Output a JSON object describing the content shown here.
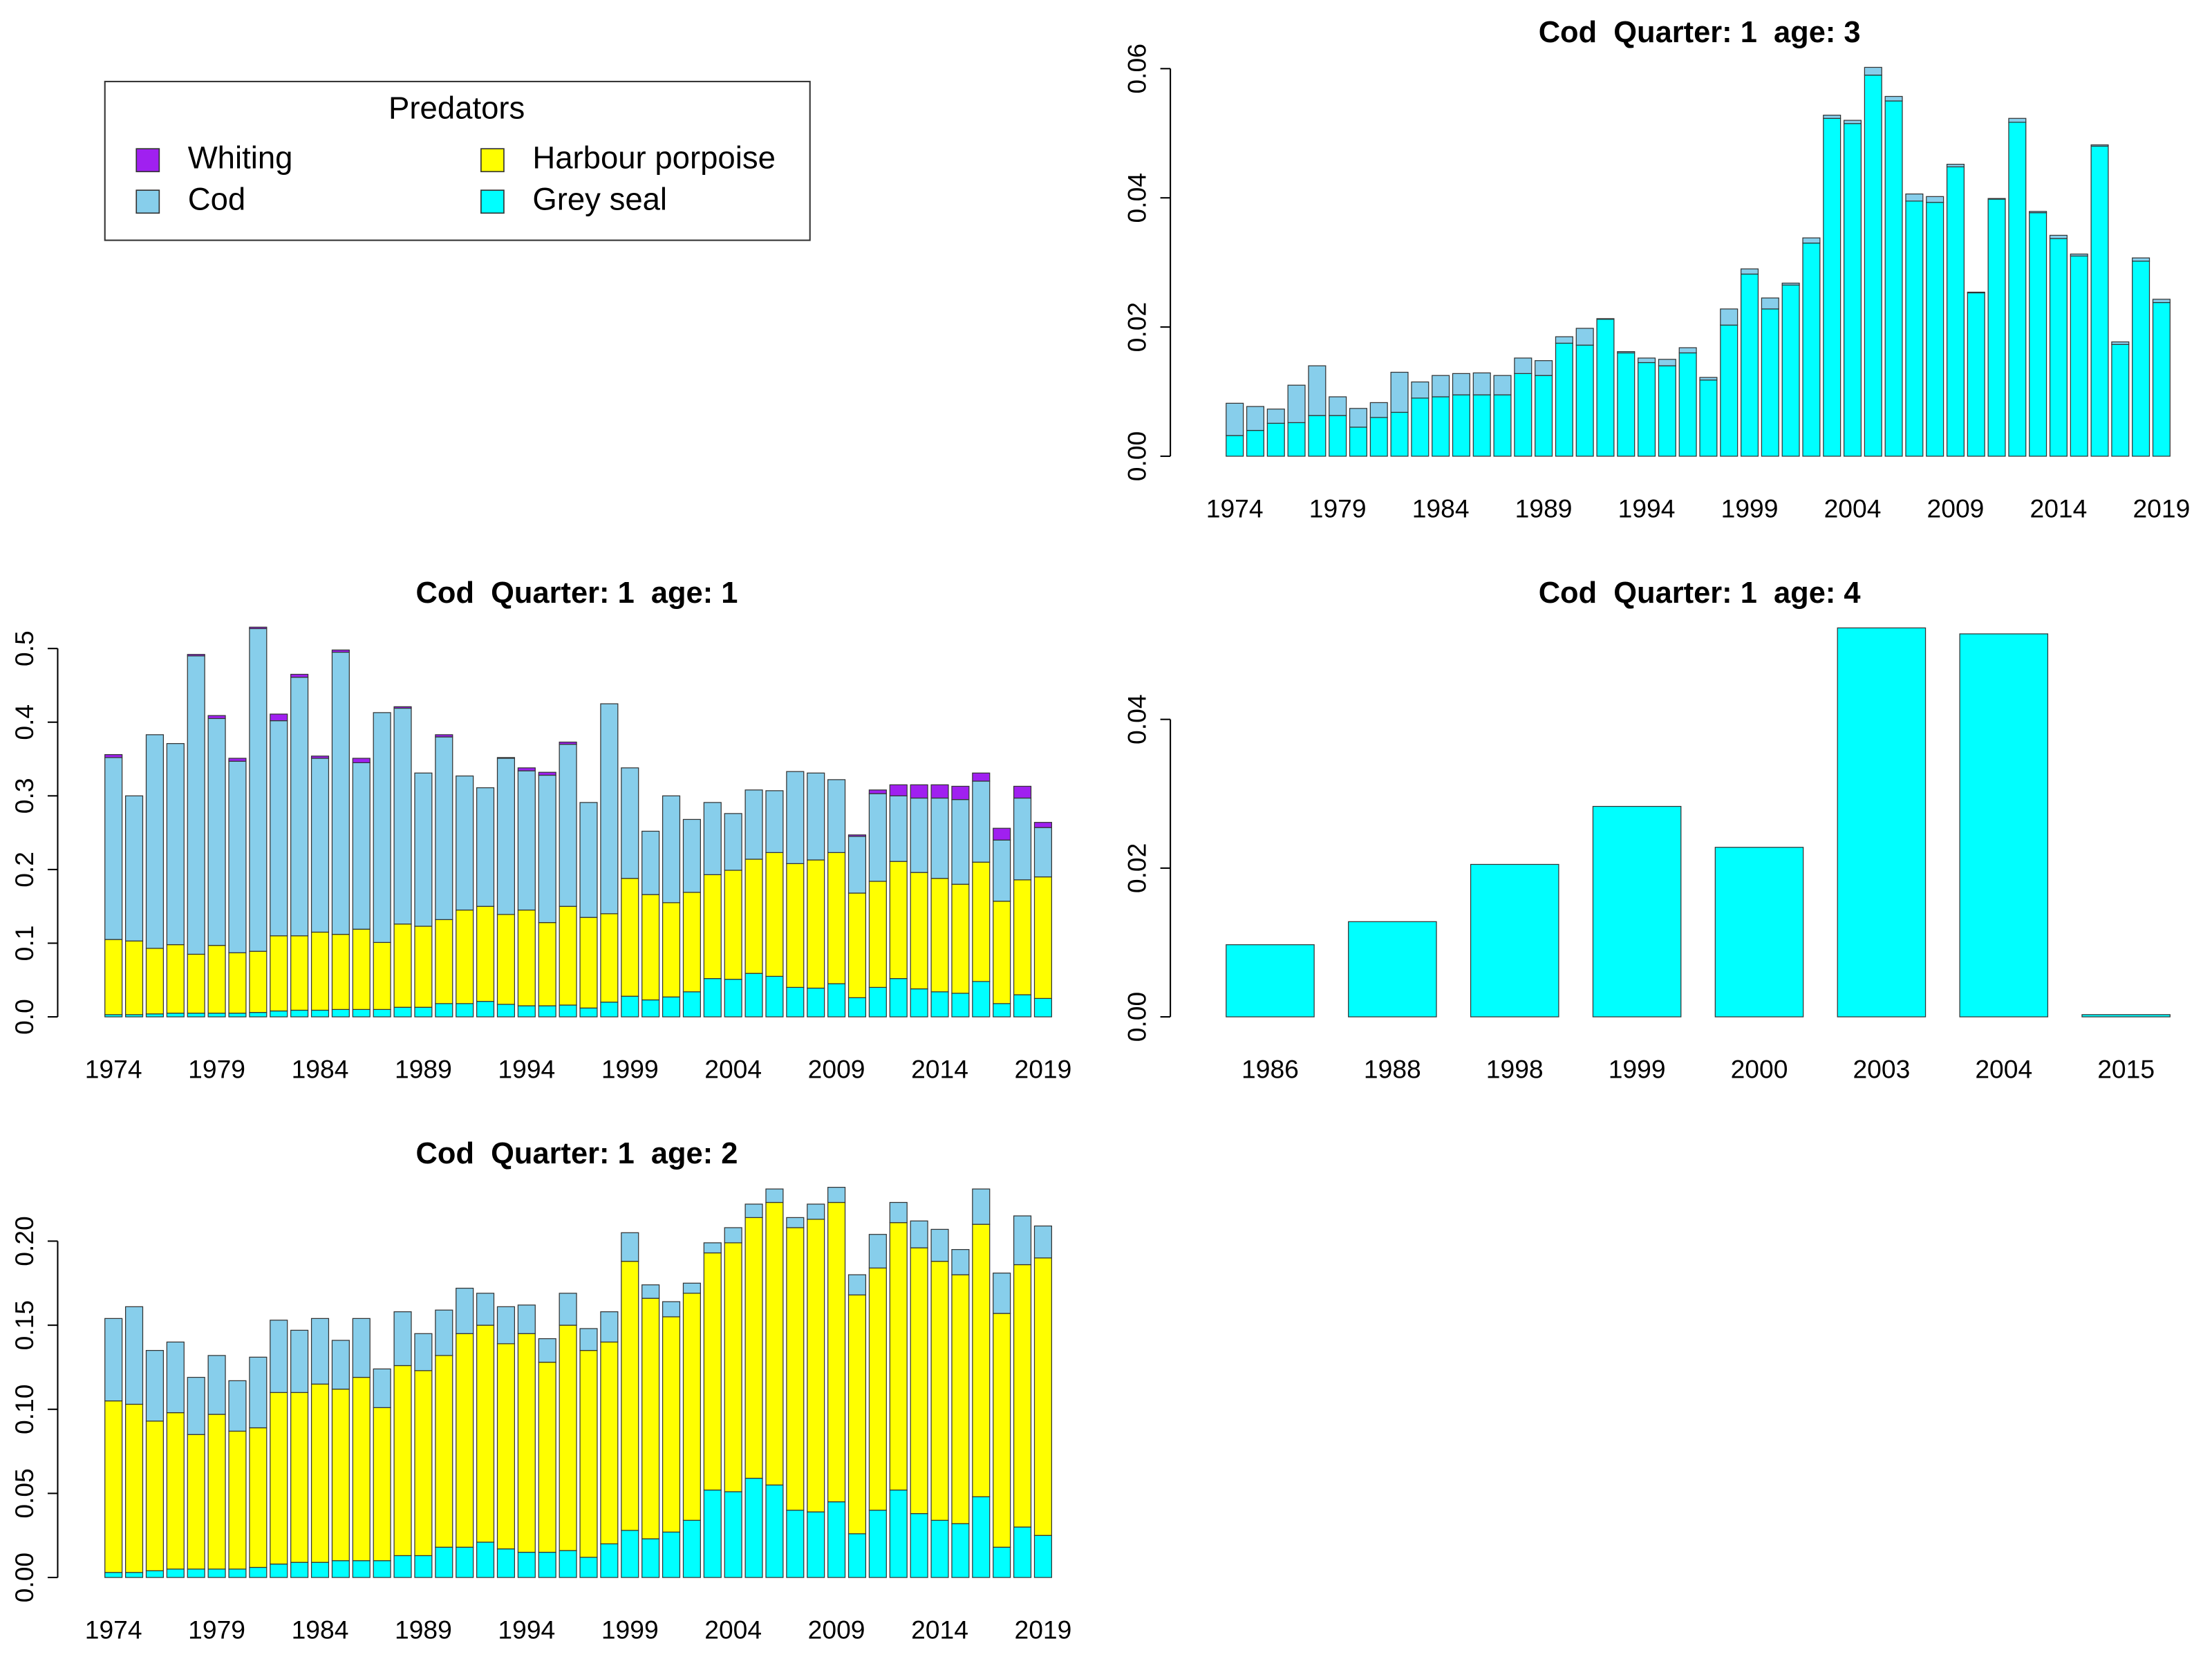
{
  "chart_data": [
    {
      "type": "bar",
      "stacked": true,
      "title": "Cod  Quarter: 1  age: 3",
      "categories": [
        1974,
        null,
        null,
        null,
        null,
        1979,
        null,
        null,
        null,
        null,
        1984,
        null,
        null,
        null,
        null,
        1989,
        null,
        null,
        null,
        null,
        1994,
        null,
        null,
        null,
        null,
        1999,
        null,
        null,
        null,
        null,
        2004,
        null,
        null,
        null,
        null,
        2009,
        null,
        null,
        null,
        null,
        2014,
        null,
        null,
        null,
        null,
        2019
      ],
      "series": [
        {
          "color": "#00ffff",
          "values": [
            0.0032,
            0.004,
            0.0051,
            0.0052,
            0.0063,
            0.0063,
            0.0045,
            0.006,
            0.0068,
            0.009,
            0.0092,
            0.0095,
            0.0095,
            0.0095,
            0.0128,
            0.0125,
            0.0175,
            0.0172,
            0.0212,
            0.016,
            0.0145,
            0.014,
            0.016,
            0.0118,
            0.0203,
            0.0282,
            0.0228,
            0.0265,
            0.033,
            0.0523,
            0.0515,
            0.059,
            0.055,
            0.0395,
            0.0393,
            0.0448,
            0.0253,
            0.0398,
            0.0517,
            0.0377,
            0.0337,
            0.031,
            0.048,
            0.0173,
            0.0302,
            0.0238
          ]
        },
        {
          "color": "#87ceeb",
          "values": [
            0.005,
            0.0037,
            0.0022,
            0.0058,
            0.0077,
            0.0029,
            0.0029,
            0.0023,
            0.0062,
            0.0025,
            0.0033,
            0.0033,
            0.0034,
            0.003,
            0.0024,
            0.0023,
            0.001,
            0.0026,
            0.0001,
            0.0002,
            0.0007,
            0.001,
            0.0008,
            0.0004,
            0.0025,
            0.0008,
            0.0017,
            0.0003,
            0.0008,
            0.0005,
            0.0005,
            0.0012,
            0.0007,
            0.0011,
            0.0009,
            0.0004,
            0.0001,
            0.0001,
            0.0006,
            0.0002,
            0.0005,
            0.0003,
            0.0002,
            0.0004,
            0.0005,
            0.0005
          ]
        }
      ],
      "ylim": [
        0,
        0.06
      ],
      "yticks": [
        {
          "value": 0,
          "label": "0.00"
        },
        0.02,
        0.04,
        0.06
      ]
    },
    {
      "type": "bar",
      "stacked": true,
      "title": "Cod  Quarter: 1  age: 1",
      "legend_title": "Predators",
      "categories": [
        1974,
        null,
        null,
        null,
        null,
        1979,
        null,
        null,
        null,
        null,
        1984,
        null,
        null,
        null,
        null,
        1989,
        null,
        null,
        null,
        null,
        1994,
        null,
        null,
        null,
        null,
        1999,
        null,
        null,
        null,
        null,
        2004,
        null,
        null,
        null,
        null,
        2009,
        null,
        null,
        null,
        null,
        2014,
        null,
        null,
        null,
        null,
        2019
      ],
      "series": [
        {
          "name": "Grey seal",
          "color": "#00ffff",
          "values": [
            0.003,
            0.003,
            0.004,
            0.005,
            0.005,
            0.005,
            0.005,
            0.006,
            0.008,
            0.009,
            0.009,
            0.01,
            0.01,
            0.01,
            0.013,
            0.013,
            0.018,
            0.018,
            0.021,
            0.017,
            0.015,
            0.015,
            0.016,
            0.012,
            0.02,
            0.028,
            0.023,
            0.027,
            0.034,
            0.052,
            0.051,
            0.059,
            0.055,
            0.04,
            0.039,
            0.045,
            0.026,
            0.04,
            0.052,
            0.038,
            0.034,
            0.032,
            0.048,
            0.018,
            0.03,
            0.025
          ]
        },
        {
          "name": "Harbour porpoise",
          "color": "#ffff00",
          "values": [
            0.102,
            0.1,
            0.089,
            0.093,
            0.08,
            0.092,
            0.082,
            0.083,
            0.102,
            0.101,
            0.106,
            0.102,
            0.109,
            0.091,
            0.113,
            0.11,
            0.114,
            0.127,
            0.129,
            0.122,
            0.13,
            0.113,
            0.134,
            0.123,
            0.12,
            0.16,
            0.143,
            0.128,
            0.135,
            0.141,
            0.148,
            0.155,
            0.168,
            0.168,
            0.174,
            0.178,
            0.142,
            0.144,
            0.159,
            0.158,
            0.154,
            0.148,
            0.162,
            0.139,
            0.156,
            0.165
          ]
        },
        {
          "name": "Cod",
          "color": "#87ceeb",
          "values": [
            0.247,
            0.197,
            0.29,
            0.273,
            0.405,
            0.308,
            0.26,
            0.438,
            0.292,
            0.351,
            0.236,
            0.383,
            0.226,
            0.312,
            0.293,
            0.208,
            0.248,
            0.182,
            0.161,
            0.212,
            0.189,
            0.2,
            0.22,
            0.156,
            0.285,
            0.15,
            0.086,
            0.145,
            0.099,
            0.098,
            0.077,
            0.094,
            0.084,
            0.125,
            0.118,
            0.099,
            0.077,
            0.119,
            0.089,
            0.101,
            0.109,
            0.115,
            0.11,
            0.083,
            0.111,
            0.067
          ]
        },
        {
          "name": "Whiting",
          "color": "#a020f0",
          "values": [
            0.004,
            0,
            0,
            0,
            0.002,
            0.004,
            0.004,
            0.002,
            0.009,
            0.004,
            0.003,
            0.003,
            0.006,
            0,
            0.002,
            0,
            0.003,
            0,
            0,
            0.001,
            0.004,
            0.004,
            0.003,
            0,
            0,
            0,
            0,
            0,
            0,
            0,
            0,
            0,
            0,
            0,
            0,
            0,
            0.002,
            0.005,
            0.015,
            0.018,
            0.018,
            0.018,
            0.011,
            0.016,
            0.016,
            0.007
          ]
        }
      ],
      "ylim": [
        0,
        0.53
      ],
      "yticks": [
        {
          "value": 0,
          "label": "0.0"
        },
        0.1,
        0.2,
        0.3,
        0.4,
        0.5
      ]
    },
    {
      "type": "bar",
      "stacked": true,
      "title": "Cod  Quarter: 1  age: 4",
      "categories": [
        1986,
        1988,
        1998,
        1999,
        2000,
        2003,
        2004,
        2015
      ],
      "series": [
        {
          "color": "#00ffff",
          "values": [
            0.0097,
            0.0128,
            0.0205,
            0.0283,
            0.0228,
            0.0523,
            0.0515,
            0.0003
          ]
        }
      ],
      "ylim": [
        0,
        0.0525
      ],
      "yticks": [
        {
          "value": 0,
          "label": "0.00"
        },
        0.02,
        0.04
      ]
    },
    {
      "type": "bar",
      "stacked": true,
      "title": "Cod  Quarter: 1  age: 2",
      "categories": [
        1974,
        null,
        null,
        null,
        null,
        1979,
        null,
        null,
        null,
        null,
        1984,
        null,
        null,
        null,
        null,
        1989,
        null,
        null,
        null,
        null,
        1994,
        null,
        null,
        null,
        null,
        1999,
        null,
        null,
        null,
        null,
        2004,
        null,
        null,
        null,
        null,
        2009,
        null,
        null,
        null,
        null,
        2014,
        null,
        null,
        null,
        null,
        2019
      ],
      "series": [
        {
          "color": "#00ffff",
          "values": [
            0.003,
            0.003,
            0.004,
            0.005,
            0.005,
            0.005,
            0.005,
            0.006,
            0.008,
            0.009,
            0.009,
            0.01,
            0.01,
            0.01,
            0.013,
            0.013,
            0.018,
            0.018,
            0.021,
            0.017,
            0.015,
            0.015,
            0.016,
            0.012,
            0.02,
            0.028,
            0.023,
            0.027,
            0.034,
            0.052,
            0.051,
            0.059,
            0.055,
            0.04,
            0.039,
            0.045,
            0.026,
            0.04,
            0.052,
            0.038,
            0.034,
            0.032,
            0.048,
            0.018,
            0.03,
            0.025
          ]
        },
        {
          "color": "#ffff00",
          "values": [
            0.102,
            0.1,
            0.089,
            0.093,
            0.08,
            0.092,
            0.082,
            0.083,
            0.102,
            0.101,
            0.106,
            0.102,
            0.109,
            0.091,
            0.113,
            0.11,
            0.114,
            0.127,
            0.129,
            0.122,
            0.13,
            0.113,
            0.134,
            0.123,
            0.12,
            0.16,
            0.143,
            0.128,
            0.135,
            0.141,
            0.148,
            0.155,
            0.168,
            0.168,
            0.174,
            0.178,
            0.142,
            0.144,
            0.159,
            0.158,
            0.154,
            0.148,
            0.162,
            0.139,
            0.156,
            0.165
          ]
        },
        {
          "color": "#87ceeb",
          "values": [
            0.049,
            0.058,
            0.042,
            0.042,
            0.034,
            0.035,
            0.03,
            0.042,
            0.043,
            0.037,
            0.039,
            0.029,
            0.035,
            0.023,
            0.032,
            0.022,
            0.027,
            0.027,
            0.019,
            0.022,
            0.017,
            0.014,
            0.019,
            0.013,
            0.018,
            0.017,
            0.008,
            0.009,
            0.006,
            0.006,
            0.009,
            0.008,
            0.008,
            0.006,
            0.009,
            0.009,
            0.012,
            0.02,
            0.012,
            0.016,
            0.019,
            0.015,
            0.021,
            0.024,
            0.029,
            0.019
          ]
        }
      ],
      "ylim": [
        0,
        0.233
      ],
      "yticks": [
        {
          "value": 0,
          "label": "0.00"
        },
        0.05,
        {
          "value": 0.1,
          "label": "0.10"
        },
        0.15,
        {
          "value": 0.2,
          "label": "0.20"
        }
      ]
    }
  ]
}
